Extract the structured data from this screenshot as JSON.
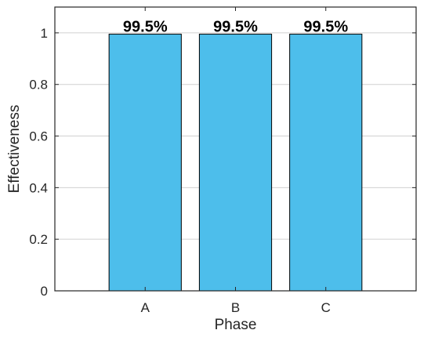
{
  "chart_data": {
    "type": "bar",
    "categories": [
      "A",
      "B",
      "C"
    ],
    "values": [
      0.995,
      0.995,
      0.995
    ],
    "data_labels": [
      "99.5%",
      "99.5%",
      "99.5%"
    ],
    "xlabel": "Phase",
    "ylabel": "Effectiveness",
    "ylim": [
      0,
      1.1
    ],
    "yticks": [
      0,
      0.2,
      0.4,
      0.6,
      0.8,
      1
    ],
    "ytick_labels": [
      "0",
      "0.2",
      "0.4",
      "0.6",
      "0.8",
      "1"
    ],
    "grid": "horizontal",
    "colors": {
      "bar_fill": "#4dbeeb",
      "bar_edge": "#000000",
      "grid": "#d0d0d0",
      "axis": "#262626"
    }
  }
}
